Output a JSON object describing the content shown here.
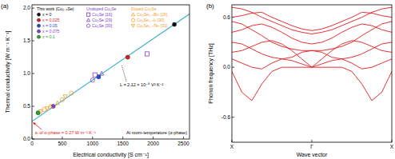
{
  "chart_data": [
    {
      "type": "scatter",
      "title": "(a)",
      "x_label": "Electrical conductivity [S cm⁻¹]",
      "y_label": "Thermal conductivity [W m⁻¹ K⁻¹]",
      "xlim": [
        0,
        2600
      ],
      "xticks": [
        0,
        500,
        1000,
        1500,
        2000,
        2500
      ],
      "ylim": [
        0,
        2.05
      ],
      "yticks": [
        {
          "value": 0,
          "label": "0.0"
        },
        0.5,
        {
          "value": 1,
          "label": "1.0"
        },
        1.5,
        {
          "value": 2,
          "label": "2.0"
        }
      ],
      "grid": false,
      "groups": [
        {
          "title": "This work (Cu₂₋ₓSe)",
          "color": "#000000",
          "series": [
            {
              "name": "x = 0",
              "color": "#111111",
              "marker": "circle",
              "x": [
                2350
              ],
              "values": [
                1.75
              ]
            },
            {
              "name": "x = 0.025",
              "color": "#e41a1c",
              "marker": "circle",
              "x": [
                1580
              ],
              "values": [
                1.25
              ]
            },
            {
              "name": "x = 0.05",
              "color": "#1f4fd8",
              "marker": "circle",
              "x": [
                1100
              ],
              "values": [
                0.95
              ]
            },
            {
              "name": "x = 0.075",
              "color": "#8b3fd1",
              "marker": "circle",
              "x": [
                350
              ],
              "values": [
                0.5
              ]
            },
            {
              "name": "x = 0.1",
              "color": "#2ca02c",
              "marker": "circle",
              "x": [
                100
              ],
              "values": [
                0.4
              ]
            }
          ]
        },
        {
          "title": "Undoped Cu₂Se",
          "color": "#7f3fbf",
          "series": [
            {
              "name": "Cu₂Se [16]",
              "color": "#7f3fbf",
              "marker": "open-square",
              "x": [
                1900,
                1040
              ],
              "values": [
                1.3,
                0.98
              ]
            },
            {
              "name": "Cu₂Se [29]",
              "color": "#7f3fbf",
              "marker": "open-triangle",
              "x": [
                1150
              ],
              "values": [
                1.0
              ]
            },
            {
              "name": "Cu₂Se [30]",
              "color": "#7f3fbf",
              "marker": "open-circle",
              "x": [
                1000
              ],
              "values": [
                0.9
              ]
            }
          ]
        },
        {
          "title": "Doped Cu₂Se",
          "color": "#f0a030",
          "series": [
            {
              "name": "Cu₂Se₁₋ₓBrₓ [29]",
              "color": "#f0a030",
              "marker": "open-triangle",
              "x": [
                300,
                420
              ],
              "values": [
                0.5,
                0.55
              ]
            },
            {
              "name": "Cu₂Se₁₋ₓIₓ [30]",
              "color": "#f0a030",
              "marker": "open-circle",
              "x": [
                200,
                500,
                650
              ],
              "values": [
                0.45,
                0.6,
                0.7
              ]
            },
            {
              "name": "Cu₂Se₁₋ₓTeₓ [31]",
              "color": "#f0a030",
              "marker": "open-triangle-down",
              "x": [
                150,
                250,
                550
              ],
              "values": [
                0.42,
                0.47,
                0.65
              ]
            }
          ]
        }
      ],
      "fit": {
        "type": "line",
        "color": "#3ab0c8",
        "x": [
          0,
          2600
        ],
        "values": [
          0.27,
          1.91
        ]
      },
      "annotations": [
        "L = 2.12 × 10⁻⁸ V² K⁻²",
        "At room-temperature (α-phase)",
        "κₗ of α-phase = 0.27 W m⁻¹ K⁻¹"
      ]
    },
    {
      "type": "line",
      "title": "(b)",
      "x_label": "Wave vector",
      "y_label": "Phonon frequency [THz]",
      "xlim": [
        0,
        2
      ],
      "xticks": [
        {
          "value": 0,
          "label": "X"
        },
        {
          "value": 1,
          "label": "Γ"
        },
        {
          "value": 2,
          "label": "X"
        }
      ],
      "ylim": [
        -0.9,
        0.75
      ],
      "yticks": [
        -0.6,
        {
          "value": 0,
          "label": "0.0"
        },
        0.6
      ],
      "grid": false,
      "color": "#e41a1c",
      "x": [
        0,
        0.125,
        0.25,
        0.375,
        0.5,
        0.625,
        0.75,
        0.875,
        1,
        1.125,
        1.25,
        1.375,
        1.5,
        1.625,
        1.75,
        1.875,
        2
      ],
      "series": [
        {
          "values": [
            0.72,
            0.7,
            0.66,
            0.6,
            0.55,
            0.5,
            0.45,
            0.42,
            0.4,
            0.42,
            0.45,
            0.5,
            0.55,
            0.6,
            0.66,
            0.7,
            0.72
          ]
        },
        {
          "values": [
            0.6,
            0.62,
            0.65,
            0.66,
            0.6,
            0.55,
            0.5,
            0.46,
            0.44,
            0.46,
            0.5,
            0.55,
            0.6,
            0.66,
            0.65,
            0.62,
            0.6
          ]
        },
        {
          "values": [
            0.55,
            0.52,
            0.45,
            0.38,
            0.3,
            0.25,
            0.22,
            0.2,
            0.2,
            0.2,
            0.22,
            0.25,
            0.3,
            0.38,
            0.45,
            0.52,
            0.55
          ]
        },
        {
          "values": [
            0.42,
            0.45,
            0.5,
            0.52,
            0.48,
            0.42,
            0.35,
            0.3,
            0.28,
            0.3,
            0.35,
            0.42,
            0.48,
            0.52,
            0.5,
            0.45,
            0.42
          ]
        },
        {
          "values": [
            0.3,
            0.28,
            0.22,
            0.16,
            0.12,
            0.1,
            0.12,
            0.18,
            0.2,
            0.18,
            0.12,
            0.1,
            0.12,
            0.16,
            0.22,
            0.28,
            0.3
          ]
        },
        {
          "values": [
            0.18,
            0.2,
            0.25,
            0.3,
            0.32,
            0.28,
            0.2,
            0.1,
            0.0,
            0.1,
            0.2,
            0.28,
            0.32,
            0.3,
            0.25,
            0.2,
            0.18
          ]
        },
        {
          "values": [
            0.1,
            0.05,
            0.0,
            -0.02,
            0.05,
            0.1,
            0.08,
            0.04,
            0.0,
            0.04,
            0.08,
            0.1,
            0.05,
            -0.02,
            0.0,
            0.05,
            0.1
          ]
        },
        {
          "values": [
            -0.05,
            -0.3,
            -0.4,
            -0.2,
            -0.05,
            0.0,
            0.0,
            0.0,
            0.0,
            0.0,
            0.0,
            0.0,
            -0.05,
            -0.2,
            -0.4,
            -0.3,
            -0.05
          ]
        }
      ]
    }
  ]
}
